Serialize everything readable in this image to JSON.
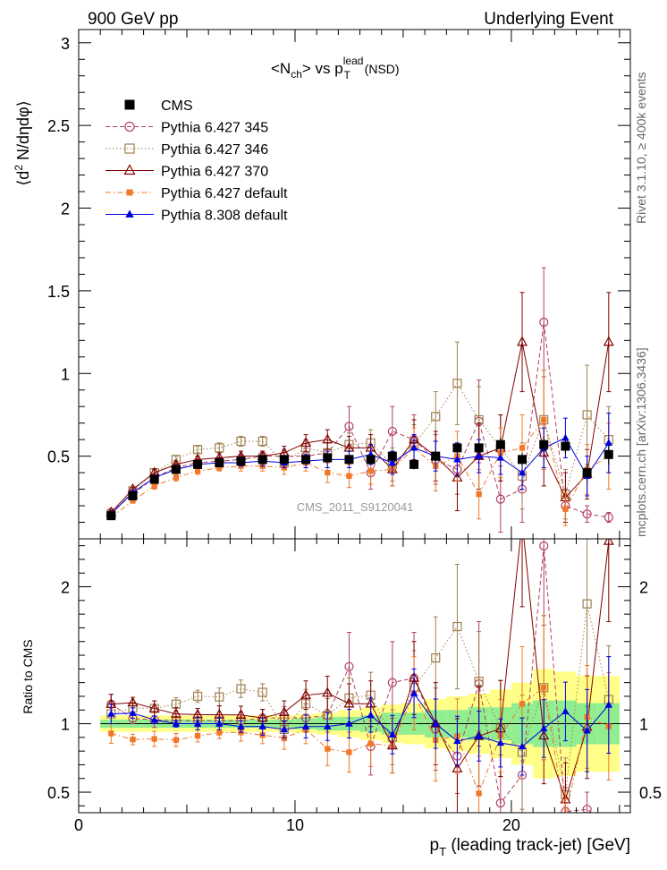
{
  "header": {
    "left": "900 GeV pp",
    "right": "Underlying Event",
    "side_top": "Rivet 3.1.10, ≥ 400k events",
    "side_bottom": "mcplots.cern.ch [arXiv:1306.3436]"
  },
  "chart_data": {
    "type": "scatter",
    "title": {
      "main_a": "<N",
      "sub_a": "ch",
      "main_b": "> vs p",
      "sup": "lead",
      "sub_b": "T",
      "tail": " (NSD)"
    },
    "watermark": "CMS_2011_S9120041",
    "ylabel_top": {
      "a": "⟨d",
      "sup": "2",
      "b": " N/dηdφ⟩"
    },
    "ylabel_bottom": "Ratio to CMS",
    "xlabel": {
      "a": "p",
      "sub": "T",
      "b": " (leading track-jet) [GeV]"
    },
    "xlim": [
      0,
      25.5
    ],
    "ylim_top": [
      0,
      3.08
    ],
    "ylim_bottom": [
      0.35,
      2.35
    ],
    "x_ticks": [
      0,
      10,
      20
    ],
    "y_ticks_top": [
      0.5,
      1,
      1.5,
      2,
      2.5,
      3
    ],
    "y_tick_labels_top": [
      "0.5",
      "1",
      "1.5",
      "2",
      "2.5",
      "3"
    ],
    "y_ticks_bottom": [
      0.5,
      1,
      2
    ],
    "y_tick_labels_bottom": [
      "0.5",
      "1",
      "2"
    ],
    "x": [
      1.5,
      2.5,
      3.5,
      4.5,
      5.5,
      6.5,
      7.5,
      8.5,
      9.5,
      10.5,
      11.5,
      12.5,
      13.5,
      14.5,
      15.5,
      16.5,
      17.5,
      18.5,
      19.5,
      20.5,
      21.5,
      22.5,
      23.5,
      24.5
    ],
    "legend_placement": "top-left",
    "series": [
      {
        "name": "CMS",
        "color": "#000000",
        "marker": "square-filled",
        "line": "none",
        "values": [
          0.14,
          0.26,
          0.36,
          0.42,
          0.45,
          0.46,
          0.47,
          0.48,
          0.48,
          0.48,
          0.49,
          0.48,
          0.48,
          0.5,
          0.45,
          0.5,
          0.55,
          0.55,
          0.57,
          0.48,
          0.57,
          0.56,
          0.4,
          0.51
        ],
        "errors": [
          0.01,
          0.01,
          0.01,
          0.01,
          0.01,
          0.01,
          0.01,
          0.01,
          0.01,
          0.01,
          0.01,
          0.02,
          0.02,
          0.02,
          0.03,
          0.03,
          0.03,
          0.03,
          0.04,
          0.04,
          0.05,
          0.05,
          0.05,
          0.06
        ]
      },
      {
        "name": "Pythia 6.427 345",
        "color": "#b04060",
        "marker": "circle-open",
        "line": "dashed",
        "values": [
          0.16,
          0.27,
          0.37,
          0.43,
          0.46,
          0.47,
          0.48,
          0.5,
          0.5,
          0.5,
          0.52,
          0.68,
          0.4,
          0.65,
          0.6,
          0.48,
          0.42,
          0.71,
          0.24,
          0.3,
          1.31,
          0.2,
          0.15,
          0.13
        ],
        "errors": [
          0.01,
          0.01,
          0.02,
          0.02,
          0.02,
          0.02,
          0.03,
          0.03,
          0.04,
          0.05,
          0.06,
          0.12,
          0.1,
          0.15,
          0.15,
          0.15,
          0.15,
          0.25,
          0.2,
          0.2,
          0.33,
          0.1,
          0.05,
          0.03
        ]
      },
      {
        "name": "Pythia 6.427 346",
        "color": "#a08050",
        "marker": "square-open",
        "line": "dotted",
        "values": [
          0.15,
          0.29,
          0.4,
          0.48,
          0.54,
          0.55,
          0.59,
          0.59,
          0.46,
          0.55,
          0.52,
          0.57,
          0.58,
          0.45,
          0.57,
          0.74,
          0.94,
          0.72,
          0.55,
          0.38,
          0.72,
          0.27,
          0.75,
          0.6
        ],
        "errors": [
          0.01,
          0.01,
          0.02,
          0.02,
          0.02,
          0.03,
          0.03,
          0.03,
          0.04,
          0.05,
          0.06,
          0.07,
          0.08,
          0.1,
          0.12,
          0.15,
          0.25,
          0.2,
          0.2,
          0.2,
          0.3,
          0.15,
          0.3,
          0.2
        ]
      },
      {
        "name": "Pythia 6.427 370",
        "color": "#800000",
        "marker": "triangle-open",
        "line": "solid",
        "values": [
          0.16,
          0.3,
          0.4,
          0.45,
          0.48,
          0.49,
          0.5,
          0.5,
          0.52,
          0.58,
          0.6,
          0.55,
          0.55,
          0.42,
          0.6,
          0.5,
          0.37,
          0.5,
          0.55,
          1.19,
          0.52,
          0.25,
          0.39,
          1.19
        ],
        "errors": [
          0.01,
          0.01,
          0.02,
          0.02,
          0.02,
          0.03,
          0.03,
          0.03,
          0.04,
          0.05,
          0.06,
          0.07,
          0.08,
          0.1,
          0.12,
          0.15,
          0.2,
          0.2,
          0.2,
          0.3,
          0.2,
          0.15,
          0.15,
          0.3
        ]
      },
      {
        "name": "Pythia 6.427 default",
        "color": "#f07828",
        "marker": "square-filled-small",
        "line": "dashdot",
        "values": [
          0.13,
          0.23,
          0.32,
          0.37,
          0.41,
          0.43,
          0.44,
          0.44,
          0.43,
          0.46,
          0.4,
          0.38,
          0.41,
          0.42,
          0.55,
          0.44,
          0.5,
          0.27,
          0.52,
          0.55,
          0.72,
          0.18,
          0.42,
          0.5
        ],
        "errors": [
          0.01,
          0.01,
          0.02,
          0.02,
          0.02,
          0.02,
          0.03,
          0.03,
          0.04,
          0.05,
          0.06,
          0.07,
          0.08,
          0.1,
          0.12,
          0.15,
          0.15,
          0.15,
          0.15,
          0.2,
          0.3,
          0.1,
          0.15,
          0.2
        ]
      },
      {
        "name": "Pythia 8.308 default",
        "color": "#0000e0",
        "marker": "triangle-filled",
        "line": "solid",
        "values": [
          0.15,
          0.28,
          0.37,
          0.42,
          0.45,
          0.46,
          0.46,
          0.47,
          0.46,
          0.47,
          0.48,
          0.48,
          0.51,
          0.46,
          0.55,
          0.5,
          0.48,
          0.5,
          0.49,
          0.4,
          0.55,
          0.61,
          0.38,
          0.58
        ],
        "errors": [
          0.01,
          0.01,
          0.01,
          0.01,
          0.02,
          0.02,
          0.02,
          0.03,
          0.03,
          0.04,
          0.05,
          0.05,
          0.06,
          0.07,
          0.08,
          0.09,
          0.1,
          0.1,
          0.1,
          0.1,
          0.12,
          0.12,
          0.12,
          0.18
        ]
      }
    ],
    "ratio_band_inner": [
      0.03,
      0.03,
      0.03,
      0.03,
      0.03,
      0.03,
      0.03,
      0.03,
      0.03,
      0.04,
      0.05,
      0.05,
      0.06,
      0.08,
      0.08,
      0.1,
      0.1,
      0.12,
      0.12,
      0.15,
      0.17,
      0.17,
      0.15,
      0.15
    ],
    "ratio_band_outer": [
      0.06,
      0.06,
      0.06,
      0.06,
      0.06,
      0.06,
      0.06,
      0.06,
      0.06,
      0.07,
      0.08,
      0.1,
      0.12,
      0.14,
      0.15,
      0.18,
      0.2,
      0.22,
      0.25,
      0.3,
      0.4,
      0.38,
      0.35,
      0.35
    ],
    "band_colors": {
      "inner": "#90ee90",
      "outer": "#ffff88"
    }
  }
}
